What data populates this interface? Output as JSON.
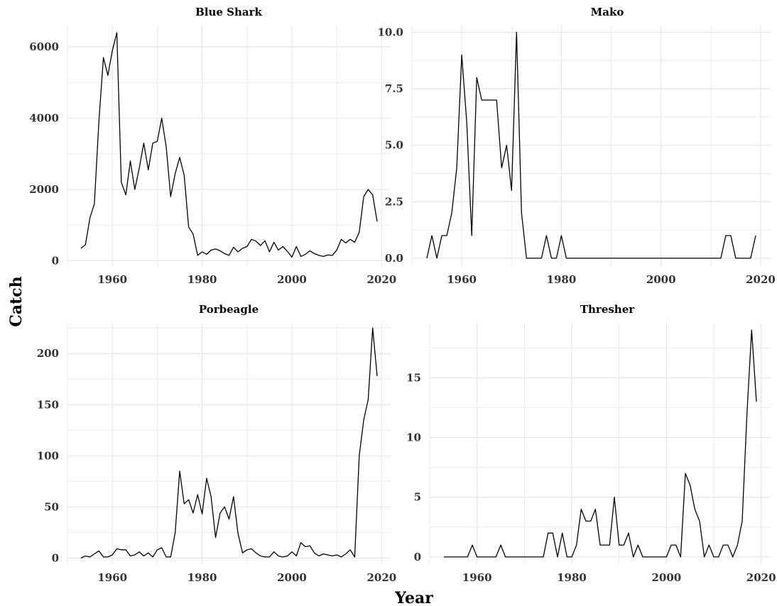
{
  "xlabel": "Year",
  "ylabel": "Catch",
  "colors": {
    "line": "#000000",
    "grid": "#ebebeb",
    "tick_text": "#333333"
  },
  "chart_data": [
    {
      "type": "line",
      "title": "Blue Shark",
      "xlim": [
        1950,
        2022
      ],
      "ylim": [
        -150,
        6600
      ],
      "xticks": [
        1960,
        1980,
        2000,
        2020
      ],
      "yticks": [
        0,
        2000,
        4000,
        6000
      ],
      "tick_labels_x": [
        "1960",
        "1980",
        "2000",
        "2020"
      ],
      "tick_labels_y": [
        "0",
        "2000",
        "4000",
        "6000"
      ],
      "x": [
        1953,
        1954,
        1955,
        1956,
        1957,
        1958,
        1959,
        1960,
        1961,
        1962,
        1963,
        1964,
        1965,
        1966,
        1967,
        1968,
        1969,
        1970,
        1971,
        1972,
        1973,
        1974,
        1975,
        1976,
        1977,
        1978,
        1979,
        1980,
        1981,
        1982,
        1983,
        1984,
        1985,
        1986,
        1987,
        1988,
        1989,
        1990,
        1991,
        1992,
        1993,
        1994,
        1995,
        1996,
        1997,
        1998,
        1999,
        2000,
        2001,
        2002,
        2003,
        2004,
        2005,
        2006,
        2007,
        2008,
        2009,
        2010,
        2011,
        2012,
        2013,
        2014,
        2015,
        2016,
        2017,
        2018,
        2019
      ],
      "y": [
        350,
        450,
        1200,
        1600,
        3900,
        5700,
        5200,
        5900,
        6400,
        2200,
        1850,
        2800,
        2000,
        2600,
        3300,
        2550,
        3300,
        3350,
        4000,
        3200,
        1800,
        2450,
        2900,
        2400,
        950,
        750,
        150,
        250,
        180,
        300,
        330,
        280,
        200,
        150,
        380,
        250,
        350,
        400,
        600,
        550,
        430,
        560,
        250,
        520,
        300,
        400,
        260,
        100,
        400,
        120,
        180,
        280,
        200,
        150,
        120,
        160,
        150,
        300,
        600,
        500,
        600,
        520,
        800,
        1800,
        2000,
        1850,
        1100
      ]
    },
    {
      "type": "line",
      "title": "Mako",
      "xlim": [
        1950,
        2022
      ],
      "ylim": [
        -0.35,
        10.3
      ],
      "xticks": [
        1960,
        1980,
        2000,
        2020
      ],
      "yticks": [
        0,
        2.5,
        5,
        7.5,
        10
      ],
      "tick_labels_x": [
        "1960",
        "1980",
        "2000",
        "2020"
      ],
      "tick_labels_y": [
        "0.0",
        "2.5",
        "5.0",
        "7.5",
        "10.0"
      ],
      "x": [
        1953,
        1954,
        1955,
        1956,
        1957,
        1958,
        1959,
        1960,
        1961,
        1962,
        1963,
        1964,
        1965,
        1966,
        1967,
        1968,
        1969,
        1970,
        1971,
        1972,
        1973,
        1974,
        1975,
        1976,
        1977,
        1978,
        1979,
        1980,
        1981,
        1982,
        1983,
        1984,
        1985,
        1986,
        1987,
        1988,
        1989,
        1990,
        1991,
        1992,
        1993,
        1994,
        1995,
        1996,
        1997,
        1998,
        1999,
        2000,
        2001,
        2002,
        2003,
        2004,
        2005,
        2006,
        2007,
        2008,
        2009,
        2010,
        2011,
        2012,
        2013,
        2014,
        2015,
        2016,
        2017,
        2018,
        2019
      ],
      "y": [
        0,
        1,
        0,
        1,
        1,
        2,
        4,
        9,
        6,
        1,
        8,
        7,
        7,
        7,
        7,
        4,
        5,
        3,
        10,
        2,
        0,
        0,
        0,
        0,
        1,
        0,
        0,
        1,
        0,
        0,
        0,
        0,
        0,
        0,
        0,
        0,
        0,
        0,
        0,
        0,
        0,
        0,
        0,
        0,
        0,
        0,
        0,
        0,
        0,
        0,
        0,
        0,
        0,
        0,
        0,
        0,
        0,
        0,
        0,
        0,
        1,
        1,
        0,
        0,
        0,
        0,
        1
      ]
    },
    {
      "type": "line",
      "title": "Porbeagle",
      "xlim": [
        1950,
        2022
      ],
      "ylim": [
        -6,
        230
      ],
      "xticks": [
        1960,
        1980,
        2000,
        2020
      ],
      "yticks": [
        0,
        50,
        100,
        150,
        200
      ],
      "tick_labels_x": [
        "1960",
        "1980",
        "2000",
        "2020"
      ],
      "tick_labels_y": [
        "0",
        "50",
        "100",
        "150",
        "200"
      ],
      "x": [
        1953,
        1954,
        1955,
        1956,
        1957,
        1958,
        1959,
        1960,
        1961,
        1962,
        1963,
        1964,
        1965,
        1966,
        1967,
        1968,
        1969,
        1970,
        1971,
        1972,
        1973,
        1974,
        1975,
        1976,
        1977,
        1978,
        1979,
        1980,
        1981,
        1982,
        1983,
        1984,
        1985,
        1986,
        1987,
        1988,
        1989,
        1990,
        1991,
        1992,
        1993,
        1994,
        1995,
        1996,
        1997,
        1998,
        1999,
        2000,
        2001,
        2002,
        2003,
        2004,
        2005,
        2006,
        2007,
        2008,
        2009,
        2010,
        2011,
        2012,
        2013,
        2014,
        2015,
        2016,
        2017,
        2018,
        2019
      ],
      "y": [
        0,
        2,
        1,
        4,
        7,
        1,
        1,
        3,
        9,
        8,
        8,
        2,
        3,
        6,
        2,
        5,
        1,
        8,
        10,
        1,
        1,
        25,
        85,
        53,
        57,
        44,
        62,
        43,
        78,
        60,
        20,
        44,
        50,
        38,
        60,
        24,
        5,
        8,
        9,
        5,
        2,
        1,
        1,
        6,
        2,
        1,
        2,
        6,
        2,
        15,
        11,
        12,
        5,
        2,
        4,
        3,
        2,
        3,
        1,
        4,
        8,
        1,
        100,
        135,
        155,
        225,
        178
      ]
    },
    {
      "type": "line",
      "title": "Thresher",
      "xlim": [
        1950,
        2022
      ],
      "ylim": [
        -0.6,
        19.6
      ],
      "xticks": [
        1960,
        1980,
        2000,
        2020
      ],
      "yticks": [
        0,
        5,
        10,
        15
      ],
      "tick_labels_x": [
        "1960",
        "1980",
        "2000",
        "2020"
      ],
      "tick_labels_y": [
        "0",
        "5",
        "10",
        "15"
      ],
      "x": [
        1953,
        1954,
        1955,
        1956,
        1957,
        1958,
        1959,
        1960,
        1961,
        1962,
        1963,
        1964,
        1965,
        1966,
        1967,
        1968,
        1969,
        1970,
        1971,
        1972,
        1973,
        1974,
        1975,
        1976,
        1977,
        1978,
        1979,
        1980,
        1981,
        1982,
        1983,
        1984,
        1985,
        1986,
        1987,
        1988,
        1989,
        1990,
        1991,
        1992,
        1993,
        1994,
        1995,
        1996,
        1997,
        1998,
        1999,
        2000,
        2001,
        2002,
        2003,
        2004,
        2005,
        2006,
        2007,
        2008,
        2009,
        2010,
        2011,
        2012,
        2013,
        2014,
        2015,
        2016,
        2017,
        2018,
        2019
      ],
      "y": [
        0,
        0,
        0,
        0,
        0,
        0,
        1,
        0,
        0,
        0,
        0,
        0,
        1,
        0,
        0,
        0,
        0,
        0,
        0,
        0,
        0,
        0,
        2,
        2,
        0,
        2,
        0,
        0,
        1,
        4,
        3,
        3,
        4,
        1,
        1,
        1,
        5,
        1,
        1,
        2,
        0,
        1,
        0,
        0,
        0,
        0,
        0,
        0,
        1,
        1,
        0,
        7,
        6,
        4,
        3,
        0,
        1,
        0,
        0,
        1,
        1,
        0,
        1,
        3,
        12,
        19,
        13
      ]
    }
  ]
}
